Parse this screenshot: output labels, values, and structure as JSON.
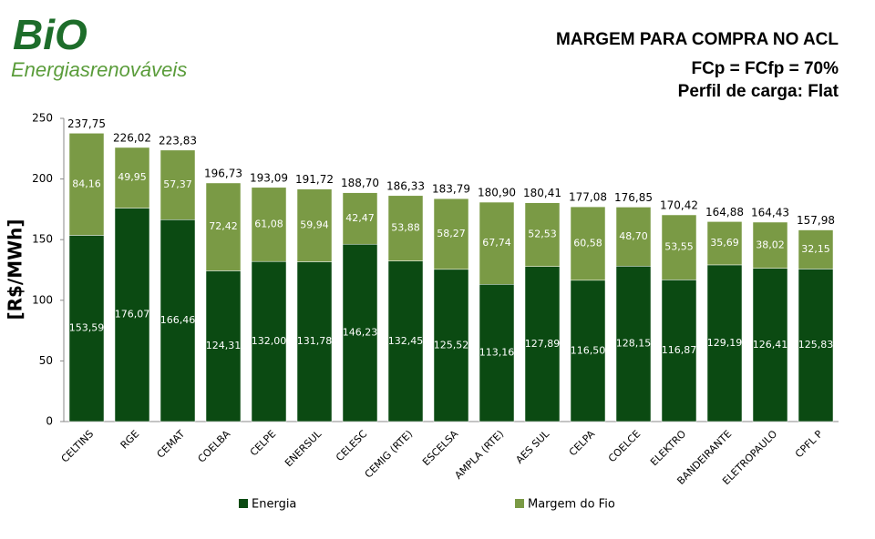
{
  "logo": {
    "brand": "BiO",
    "tagline": "Energiasrenováveis"
  },
  "chart_data": {
    "type": "stacked-bar",
    "title": "MARGEM PARA COMPRA NO ACL",
    "subtitle": [
      "FCp = FCfp = 70%",
      "Perfil de carga: Flat"
    ],
    "y_label": "[R$/MWh]",
    "categories": [
      "CELTINS",
      "RGE",
      "CEMAT",
      "COELBA",
      "CELPE",
      "ENERSUL",
      "CELESC",
      "CEMIG (RTE)",
      "ESCELSA",
      "AMPLA (RTE)",
      "AES SUL",
      "CELPA",
      "COELCE",
      "ELEKTRO",
      "BANDEIRANTE",
      "ELETROPAULO",
      "CPFL P"
    ],
    "series": [
      {
        "name": "Energia",
        "color": "#0b4a12",
        "values": [
          153.59,
          176.07,
          166.46,
          124.31,
          132.0,
          131.78,
          146.23,
          132.45,
          125.52,
          113.16,
          127.89,
          116.5,
          128.15,
          116.87,
          129.19,
          126.41,
          125.83
        ],
        "value_labels": [
          "153,59",
          "176,07",
          "166,46",
          "124,31",
          "132,00",
          "131,78",
          "146,23",
          "132,45",
          "125,52",
          "113,16",
          "127,89",
          "116,50",
          "128,15",
          "116,87",
          "129,19",
          "126,41",
          "125,83"
        ]
      },
      {
        "name": "Margem do Fio",
        "color": "#7a9a45",
        "values": [
          84.16,
          49.95,
          57.37,
          72.42,
          61.08,
          59.94,
          42.47,
          53.88,
          58.27,
          67.74,
          52.53,
          60.58,
          48.7,
          53.55,
          35.69,
          38.02,
          32.15
        ],
        "value_labels": [
          "84,16",
          "49,95",
          "57,37",
          "72,42",
          "61,08",
          "59,94",
          "42,47",
          "53,88",
          "58,27",
          "67,74",
          "52,53",
          "60,58",
          "48,70",
          "53,55",
          "35,69",
          "38,02",
          "32,15"
        ]
      }
    ],
    "totals": [
      237.75,
      226.02,
      223.83,
      196.73,
      193.09,
      191.72,
      188.7,
      186.33,
      183.79,
      180.9,
      180.41,
      177.08,
      176.85,
      170.42,
      164.88,
      164.43,
      157.98
    ],
    "total_labels": [
      "237,75",
      "226,02",
      "223,83",
      "196,73",
      "193,09",
      "191,72",
      "188,70",
      "186,33",
      "183,79",
      "180,90",
      "180,41",
      "177,08",
      "176,85",
      "170,42",
      "164,88",
      "164,43",
      "157,98"
    ],
    "ylim": [
      0,
      250
    ],
    "yticks": [
      0,
      50,
      100,
      150,
      200,
      250
    ]
  }
}
